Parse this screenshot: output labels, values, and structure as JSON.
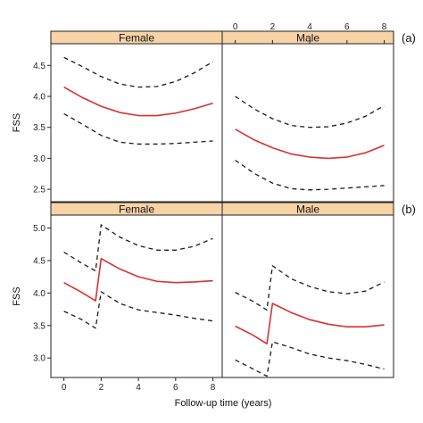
{
  "chart_data": {
    "type": "line",
    "xlabel": "Follow-up time (years)",
    "ylabel": "FSS",
    "xlim": [
      -0.7,
      8.5
    ],
    "x_ticks": [
      0,
      2,
      4,
      6,
      8
    ],
    "colors": {
      "estimate": "#d93030",
      "ci": "#1a1a1a",
      "strip": "#f7d3a6",
      "frame": "#222222"
    },
    "panels": [
      {
        "label": "(a)",
        "ylim": [
          2.3,
          4.85
        ],
        "y_ticks": [
          2.5,
          3.0,
          3.5,
          4.0,
          4.5
        ],
        "y_tick_labels": [
          "2.5",
          "3.0",
          "3.5",
          "4.0",
          "4.5"
        ],
        "x_axis_side": "top",
        "facets": [
          {
            "strip": "Female",
            "series": [
              {
                "role": "estimate",
                "x": [
                  0,
                  1,
                  2,
                  3,
                  4,
                  5,
                  6,
                  7,
                  8
                ],
                "y": [
                  4.15,
                  3.98,
                  3.84,
                  3.74,
                  3.69,
                  3.69,
                  3.73,
                  3.8,
                  3.89
                ]
              },
              {
                "role": "upper",
                "x": [
                  0,
                  1,
                  2,
                  3,
                  4,
                  5,
                  6,
                  7,
                  8
                ],
                "y": [
                  4.63,
                  4.48,
                  4.32,
                  4.2,
                  4.15,
                  4.16,
                  4.24,
                  4.38,
                  4.56
                ]
              },
              {
                "role": "lower",
                "x": [
                  0,
                  1,
                  2,
                  3,
                  4,
                  5,
                  6,
                  7,
                  8
                ],
                "y": [
                  3.72,
                  3.55,
                  3.37,
                  3.26,
                  3.23,
                  3.23,
                  3.24,
                  3.26,
                  3.28
                ]
              }
            ]
          },
          {
            "strip": "Male",
            "series": [
              {
                "role": "estimate",
                "x": [
                  0,
                  1,
                  2,
                  3,
                  4,
                  5,
                  6,
                  7,
                  8
                ],
                "y": [
                  3.47,
                  3.3,
                  3.17,
                  3.07,
                  3.02,
                  3.0,
                  3.02,
                  3.09,
                  3.21
                ]
              },
              {
                "role": "upper",
                "x": [
                  0,
                  1,
                  2,
                  3,
                  4,
                  5,
                  6,
                  7,
                  8
                ],
                "y": [
                  4.0,
                  3.8,
                  3.64,
                  3.53,
                  3.5,
                  3.51,
                  3.57,
                  3.68,
                  3.85
                ]
              },
              {
                "role": "lower",
                "x": [
                  0,
                  1,
                  2,
                  3,
                  4,
                  5,
                  6,
                  7,
                  8
                ],
                "y": [
                  2.97,
                  2.76,
                  2.6,
                  2.51,
                  2.49,
                  2.5,
                  2.52,
                  2.54,
                  2.56
                ]
              }
            ]
          }
        ]
      },
      {
        "label": "(b)",
        "ylim": [
          2.7,
          5.2
        ],
        "y_ticks": [
          3.0,
          3.5,
          4.0,
          4.5,
          5.0
        ],
        "y_tick_labels": [
          "3.0",
          "3.5",
          "4.0",
          "4.5",
          "5.0"
        ],
        "x_axis_side": "bottom",
        "facets": [
          {
            "strip": "Female",
            "series": [
              {
                "role": "estimate",
                "x": [
                  0,
                  0.9,
                  1.7,
                  2,
                  3,
                  4,
                  5,
                  6,
                  7,
                  8
                ],
                "y": [
                  4.16,
                  4.02,
                  3.88,
                  4.53,
                  4.37,
                  4.25,
                  4.18,
                  4.16,
                  4.17,
                  4.19
                ]
              },
              {
                "role": "upper",
                "x": [
                  0,
                  0.9,
                  1.7,
                  2,
                  3,
                  4,
                  5,
                  6,
                  7,
                  8
                ],
                "y": [
                  4.63,
                  4.47,
                  4.34,
                  5.05,
                  4.86,
                  4.73,
                  4.66,
                  4.66,
                  4.72,
                  4.84
                ]
              },
              {
                "role": "lower",
                "x": [
                  0,
                  0.9,
                  1.7,
                  2,
                  3,
                  4,
                  5,
                  6,
                  7,
                  8
                ],
                "y": [
                  3.72,
                  3.6,
                  3.46,
                  4.02,
                  3.84,
                  3.74,
                  3.7,
                  3.66,
                  3.61,
                  3.57
                ]
              }
            ]
          },
          {
            "strip": "Male",
            "series": [
              {
                "role": "estimate",
                "x": [
                  0,
                  0.9,
                  1.7,
                  2,
                  3,
                  4,
                  5,
                  6,
                  7,
                  8
                ],
                "y": [
                  3.49,
                  3.36,
                  3.22,
                  3.84,
                  3.7,
                  3.59,
                  3.52,
                  3.48,
                  3.48,
                  3.51
                ]
              },
              {
                "role": "upper",
                "x": [
                  0,
                  0.9,
                  1.7,
                  2,
                  3,
                  4,
                  5,
                  6,
                  7,
                  8
                ],
                "y": [
                  4.01,
                  3.88,
                  3.74,
                  4.42,
                  4.22,
                  4.1,
                  4.02,
                  3.99,
                  4.03,
                  4.17
                ]
              },
              {
                "role": "lower",
                "x": [
                  0,
                  0.9,
                  1.7,
                  2,
                  3,
                  4,
                  5,
                  6,
                  7,
                  8
                ],
                "y": [
                  2.97,
                  2.84,
                  2.72,
                  3.25,
                  3.16,
                  3.06,
                  3.0,
                  2.96,
                  2.9,
                  2.83
                ]
              }
            ]
          }
        ]
      }
    ]
  }
}
